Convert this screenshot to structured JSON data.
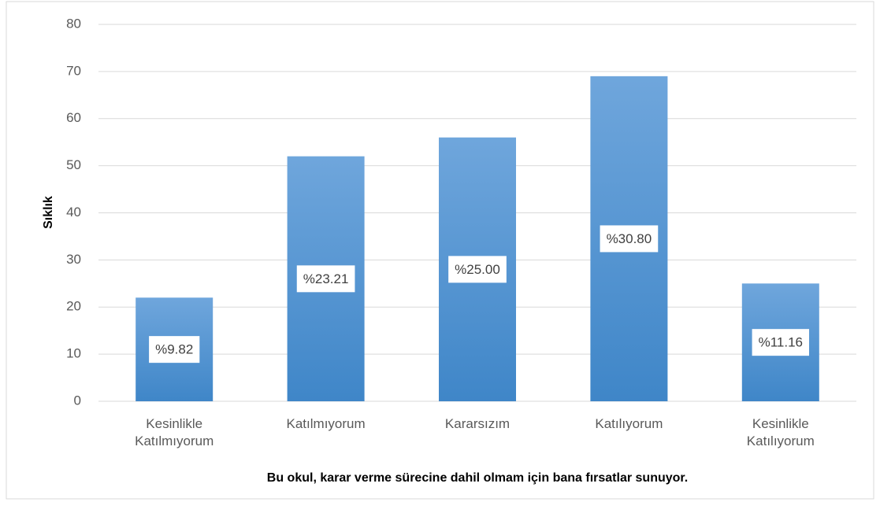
{
  "chart_data": {
    "type": "bar",
    "categories": [
      "Kesinlikle Katılmıyorum",
      "Katılmıyorum",
      "Kararsızım",
      "Katılıyorum",
      "Kesinlikle Katılıyorum"
    ],
    "values": [
      22,
      52,
      56,
      69,
      25
    ],
    "data_labels": [
      {
        "value": 9.82,
        "label": "%9.82"
      },
      {
        "value": 23.21,
        "label": "%23.21"
      },
      {
        "value": 25.0,
        "label": "%25.00"
      },
      {
        "value": 30.8,
        "label": "%30.80"
      },
      {
        "value": 11.16,
        "label": "%11.16"
      }
    ],
    "color": "#5b9bd5",
    "ylabel": "Sıklık",
    "xlabel": "Bu okul, karar verme sürecine dahil olmam için bana fırsatlar sunuyor.",
    "ylim": [
      0,
      80
    ],
    "yticks": [
      0,
      10,
      20,
      30,
      40,
      50,
      60,
      70,
      80
    ],
    "grid": true
  }
}
